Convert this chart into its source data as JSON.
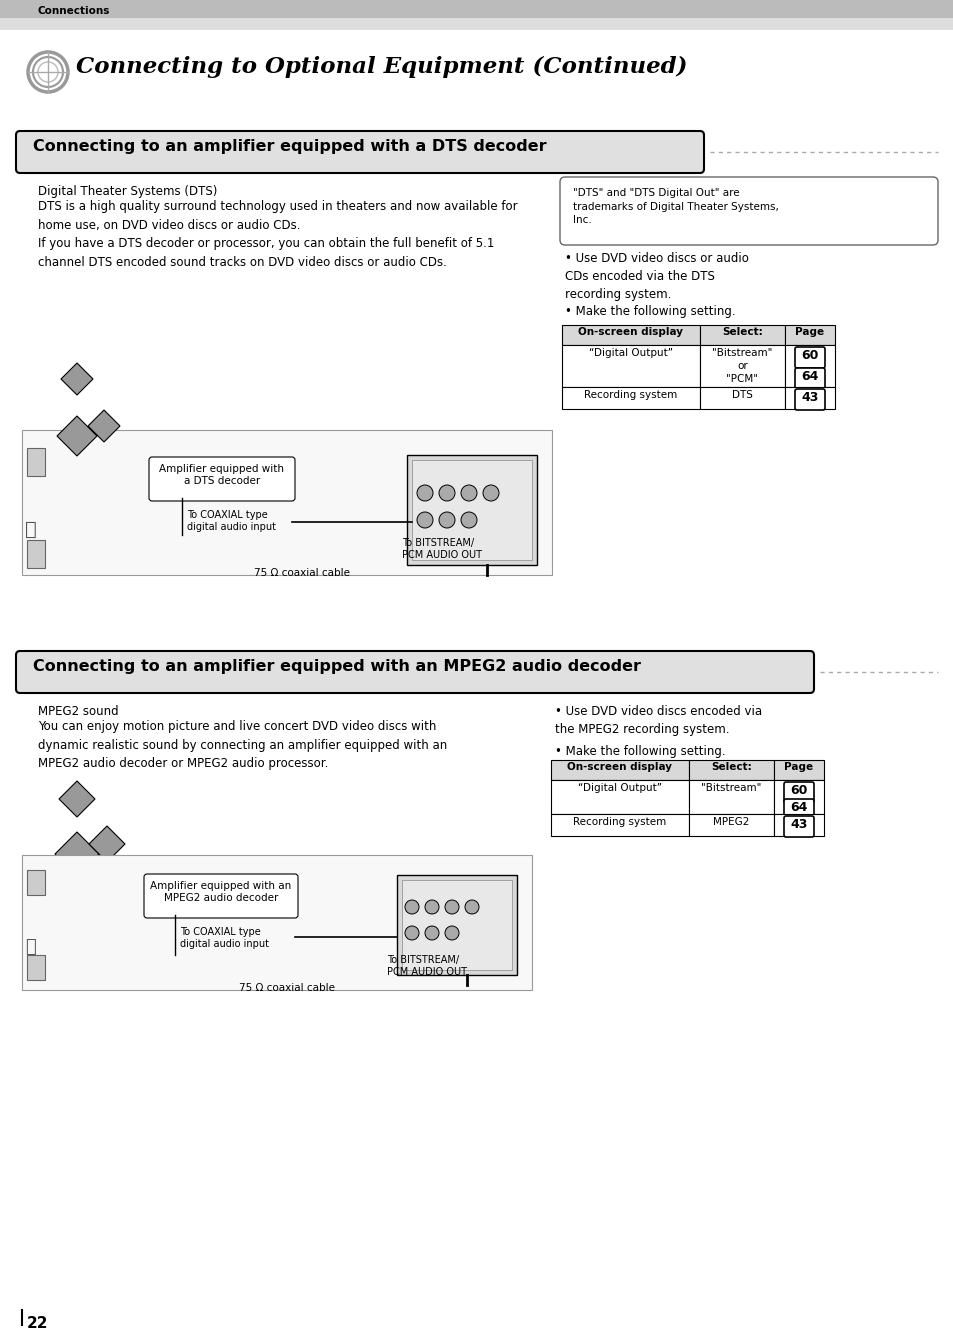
{
  "bg_color": "#ffffff",
  "page_width": 9.54,
  "page_height": 13.29,
  "header_text": "Connections",
  "title": "Connecting to Optional Equipment (Continued)",
  "section1_header": "Connecting to an amplifier equipped with a DTS decoder",
  "section1_subtitle": "Digital Theater Systems (DTS)",
  "section1_body": "DTS is a high quality surround technology used in theaters and now available for\nhome use, on DVD video discs or audio CDs.\nIf you have a DTS decoder or processor, you can obtain the full benefit of 5.1\nchannel DTS encoded sound tracks on DVD video discs or audio CDs.",
  "section1_note": "\"DTS\" and \"DTS Digital Out\" are\ntrademarks of Digital Theater Systems,\nInc.",
  "section1_bullets": [
    "Use DVD video discs or audio\nCDs encoded via the DTS\nrecording system.",
    "Make the following setting."
  ],
  "section1_table_headers": [
    "On-screen display",
    "Select:",
    "Page"
  ],
  "section1_table_rows": [
    [
      "“Digital Output”",
      "\"Bitstream\"\nor\n\"PCM\"",
      "60\n64"
    ],
    [
      "Recording system",
      "DTS",
      "43"
    ]
  ],
  "section1_diagram_label1": "Amplifier equipped with\na DTS decoder",
  "section1_diagram_label2": "To COAXIAL type\ndigital audio input",
  "section1_diagram_label3": "To BITSTREAM/\nPCM AUDIO OUT",
  "section1_diagram_cable": "75 Ω coaxial cable",
  "section2_header": "Connecting to an amplifier equipped with an MPEG2 audio decoder",
  "section2_subtitle": "MPEG2 sound",
  "section2_body": "You can enjoy motion picture and live concert DVD video discs with\ndynamic realistic sound by connecting an amplifier equipped with an\nMPEG2 audio decoder or MPEG2 audio processor.",
  "section2_bullets": [
    "Use DVD video discs encoded via\nthe MPEG2 recording system.",
    "Make the following setting."
  ],
  "section2_table_headers": [
    "On-screen display",
    "Select:",
    "Page"
  ],
  "section2_table_rows": [
    [
      "“Digital Output”",
      "\"Bitstream\"",
      "60\n64"
    ],
    [
      "Recording system",
      "MPEG2",
      "43"
    ]
  ],
  "section2_diagram_label1": "Amplifier equipped with an\nMPEG2 audio decoder",
  "section2_diagram_label2": "To COAXIAL type\ndigital audio input",
  "section2_diagram_label3": "To BITSTREAM/\nPCM AUDIO OUT",
  "section2_diagram_cable": "75 Ω coaxial cable",
  "page_number": "22"
}
